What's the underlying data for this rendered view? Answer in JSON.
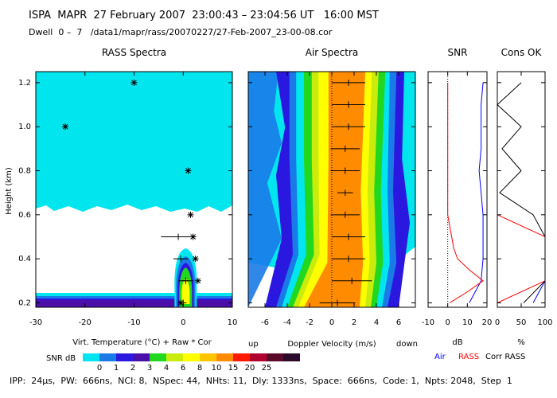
{
  "header": {
    "line1": "ISPA  MAPR  27 February 2007  23:00:43 – 23:04:56 UT   16:00 MST",
    "line2": "Dwell  0 –  7   /data1/mapr/rass/20070227/27-Feb-2007_23-00-08.cor"
  },
  "footer": {
    "text": "IPP:  24μs,  PW:  666ns,  NCI: 8,  NSpec: 44,  NHts: 11,  Dly: 1333ns,  Space:  666ns,  Code: 1,  Npts: 2048,  Step  1"
  },
  "colors": {
    "snr_scale": [
      "#00e5ee",
      "#1a7ae8",
      "#2b18e0",
      "#4a0fa8",
      "#22d81e",
      "#c9ec0c",
      "#ffff00",
      "#ffc400",
      "#ff8c00",
      "#ff1a00",
      "#b00030",
      "#5a0a28",
      "#2a0a2a"
    ],
    "air_line": "#0000ff",
    "rass_line": "#ff0000",
    "corr_line": "#000000"
  },
  "chart_data": [
    {
      "type": "heatmap",
      "title": "RASS Spectra",
      "xlabel": "Virt. Temperature (°C)   + Raw   * Cor",
      "ylabel": "Height (km)",
      "xlim": [
        -30,
        10
      ],
      "ylim": [
        0.18,
        1.25
      ],
      "xticks": [
        -30,
        -20,
        -10,
        0,
        10
      ],
      "yticks": [
        0.2,
        0.4,
        0.6,
        0.8,
        1.0,
        1.2
      ],
      "raw_points": [
        {
          "h": 0.5,
          "t": -1,
          "err": 3.5
        },
        {
          "h": 0.4,
          "t": -0.5,
          "err": 1.5
        },
        {
          "h": 0.3,
          "t": 0.5,
          "err": 1.5
        },
        {
          "h": 0.2,
          "t": 0,
          "err": 0
        }
      ],
      "cor_points": [
        {
          "h": 1.2,
          "t": -10
        },
        {
          "h": 1.0,
          "t": -24
        },
        {
          "h": 0.8,
          "t": 1
        },
        {
          "h": 0.6,
          "t": 1.5
        },
        {
          "h": 0.5,
          "t": 2
        },
        {
          "h": 0.4,
          "t": 2.5
        },
        {
          "h": 0.3,
          "t": 3
        },
        {
          "h": 0.2,
          "t": -0.5
        }
      ]
    },
    {
      "type": "heatmap",
      "title": "Air Spectra",
      "xlabel": "Doppler Velocity (m/s)",
      "left_note": "up",
      "right_note": "down",
      "xlim": [
        -7.5,
        7.5
      ],
      "ylim": [
        0.18,
        1.25
      ],
      "xticks": [
        -6,
        -4,
        -2,
        0,
        2,
        4,
        6
      ],
      "mean_points": [
        {
          "h": 1.2,
          "v": 1.5,
          "err": 1.5
        },
        {
          "h": 1.1,
          "v": 1.5,
          "err": 1.5
        },
        {
          "h": 1.0,
          "v": 1.5,
          "err": 1.5
        },
        {
          "h": 0.9,
          "v": 1.2,
          "err": 1.3
        },
        {
          "h": 0.8,
          "v": 1.2,
          "err": 1.3
        },
        {
          "h": 0.7,
          "v": 1.2,
          "err": 0.7
        },
        {
          "h": 0.6,
          "v": 1.2,
          "err": 1.3
        },
        {
          "h": 0.5,
          "v": 1.5,
          "err": 1.5
        },
        {
          "h": 0.4,
          "v": 1.5,
          "err": 1.5
        },
        {
          "h": 0.3,
          "v": 1.8,
          "err": 1.8
        },
        {
          "h": 0.2,
          "v": 0.5,
          "err": 1.6
        }
      ]
    },
    {
      "type": "line",
      "title": "SNR",
      "xlabel": "dB",
      "xlim": [
        -10,
        20
      ],
      "xticks": [
        -10,
        0,
        10,
        20
      ],
      "legend": [
        "Air",
        "RASS"
      ],
      "series": [
        {
          "name": "Air",
          "heights": [
            0.2,
            0.3,
            0.4,
            0.5,
            0.6,
            0.7,
            0.8,
            0.9,
            1.0,
            1.1,
            1.2
          ],
          "values": [
            11,
            17,
            18,
            18,
            18,
            17,
            16,
            17,
            17,
            17,
            18
          ]
        },
        {
          "name": "RASS",
          "heights": [
            0.2,
            0.25,
            0.3,
            0.35,
            0.4,
            0.45,
            0.5,
            0.55,
            0.6,
            0.8,
            1.0,
            1.2
          ],
          "values": [
            1,
            10,
            18,
            11,
            5,
            3,
            2,
            1,
            0,
            0,
            0,
            0
          ]
        }
      ]
    },
    {
      "type": "line",
      "title": "Cons OK",
      "xlabel": "%",
      "xlim": [
        0,
        100
      ],
      "xticks": [
        0,
        50,
        100
      ],
      "legend": [
        "Corr RASS"
      ],
      "series": [
        {
          "name": "Corr",
          "heights": [
            0.2,
            0.3,
            0.4,
            0.5,
            0.6,
            0.7,
            0.8,
            0.9,
            1.0,
            1.1,
            1.2
          ],
          "values": [
            55,
            100,
            100,
            100,
            75,
            5,
            50,
            10,
            50,
            0,
            50
          ]
        },
        {
          "name": "RASS",
          "heights": [
            0.2,
            0.3,
            0.4,
            0.5,
            0.6,
            0.7,
            0.8,
            1.0,
            1.2
          ],
          "values": [
            0,
            100,
            100,
            100,
            0,
            0,
            0,
            0,
            0
          ]
        },
        {
          "name": "Air",
          "heights": [
            0.2,
            0.3
          ],
          "values": [
            75,
            100
          ]
        }
      ]
    },
    {
      "type": "table",
      "title": "SNR dB",
      "values": [
        0,
        1,
        2,
        3,
        4,
        6,
        8,
        10,
        15,
        20,
        25
      ]
    }
  ]
}
